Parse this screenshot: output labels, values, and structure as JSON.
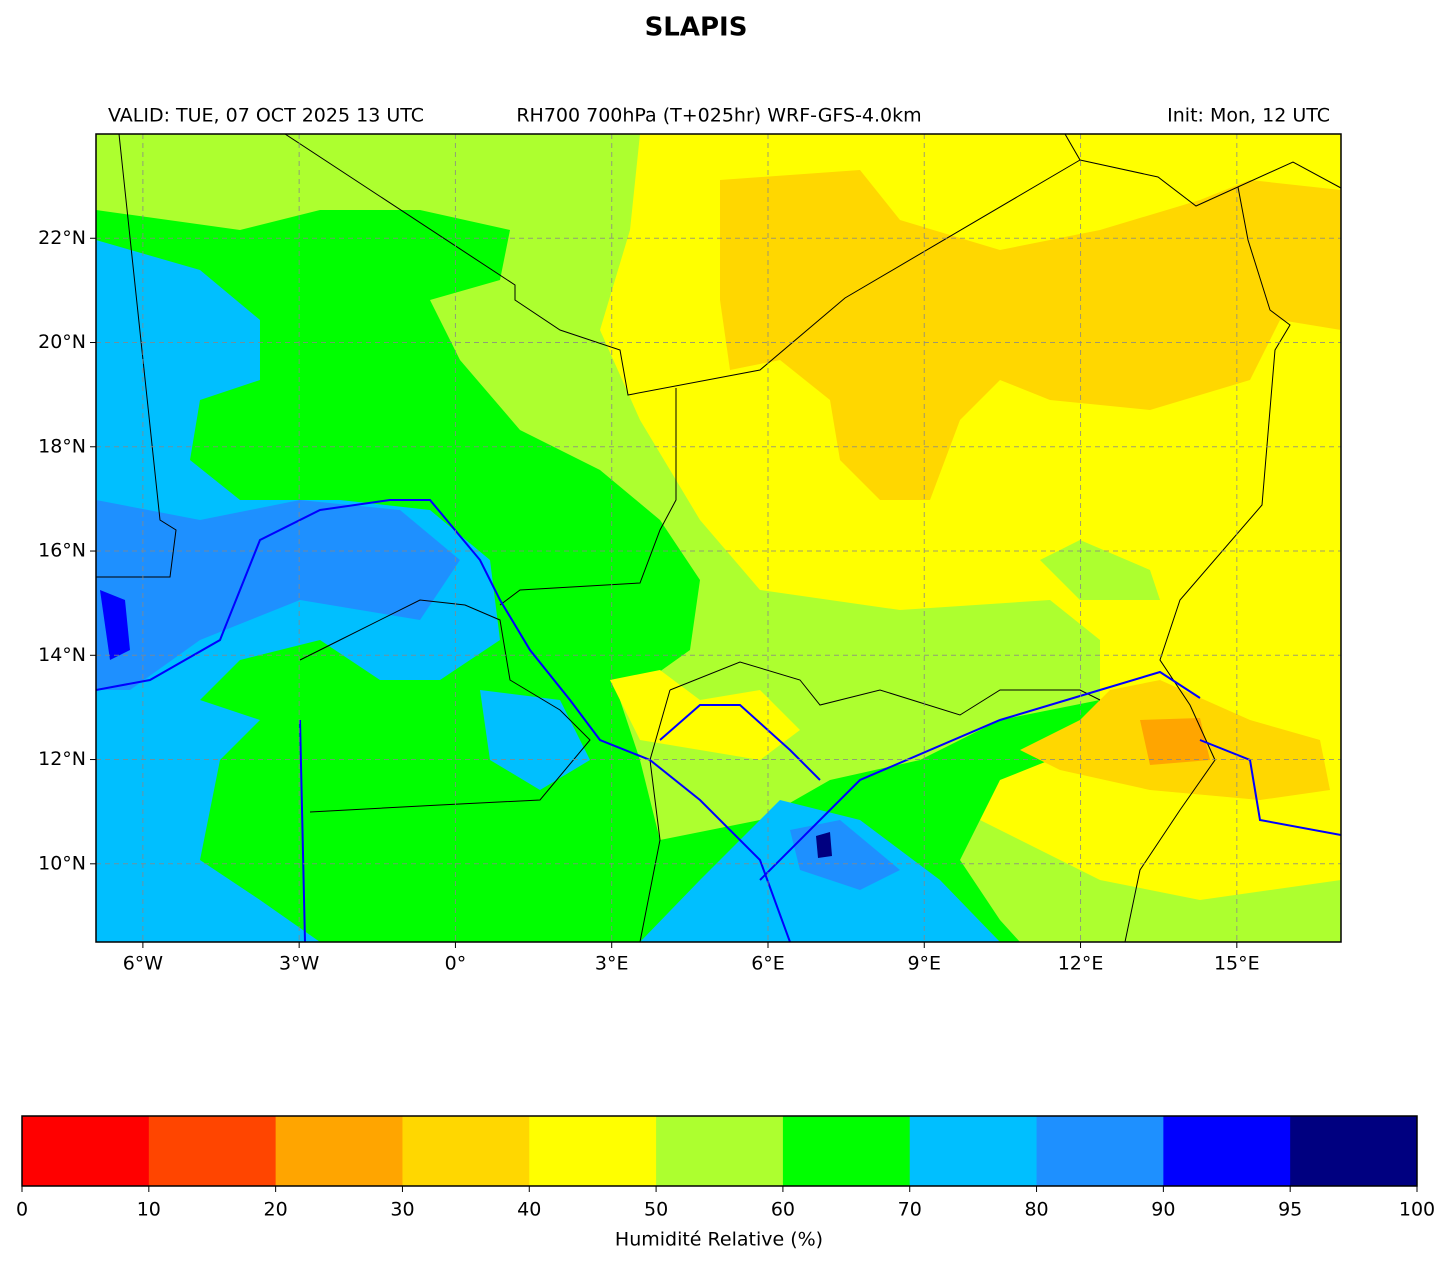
{
  "map": {
    "title": "SLAPIS",
    "valid": "VALID: TUE, 07 OCT 2025 13 UTC",
    "subtitle": "RH700 700hPa (T+025hr) WRF-GFS-4.0km",
    "init": "Init: Mon, 12 UTC",
    "xlim": [
      -6.9,
      17
    ],
    "ylim": [
      8.5,
      24
    ],
    "xticks": [
      {
        "value": -6,
        "label": "6°W"
      },
      {
        "value": -3,
        "label": "3°W"
      },
      {
        "value": 0,
        "label": "0°"
      },
      {
        "value": 3,
        "label": "3°E"
      },
      {
        "value": 6,
        "label": "6°E"
      },
      {
        "value": 9,
        "label": "9°E"
      },
      {
        "value": 12,
        "label": "12°E"
      },
      {
        "value": 15,
        "label": "15°E"
      }
    ],
    "yticks": [
      {
        "value": 10,
        "label": "10°N"
      },
      {
        "value": 12,
        "label": "12°N"
      },
      {
        "value": 14,
        "label": "14°N"
      },
      {
        "value": 16,
        "label": "16°N"
      },
      {
        "value": 18,
        "label": "18°N"
      },
      {
        "value": 20,
        "label": "20°N"
      },
      {
        "value": 22,
        "label": "22°N"
      }
    ],
    "grid": true
  },
  "colorbar": {
    "label": "Humidité Relative (%)",
    "ticks": [
      0,
      10,
      20,
      30,
      40,
      50,
      60,
      70,
      80,
      90,
      95,
      100
    ],
    "colors": [
      "#ff0000",
      "#ff4500",
      "#ffa500",
      "#ffd700",
      "#ffff00",
      "#adff2f",
      "#00ff00",
      "#00bfff",
      "#1e90ff",
      "#0000ff",
      "#000080"
    ]
  }
}
